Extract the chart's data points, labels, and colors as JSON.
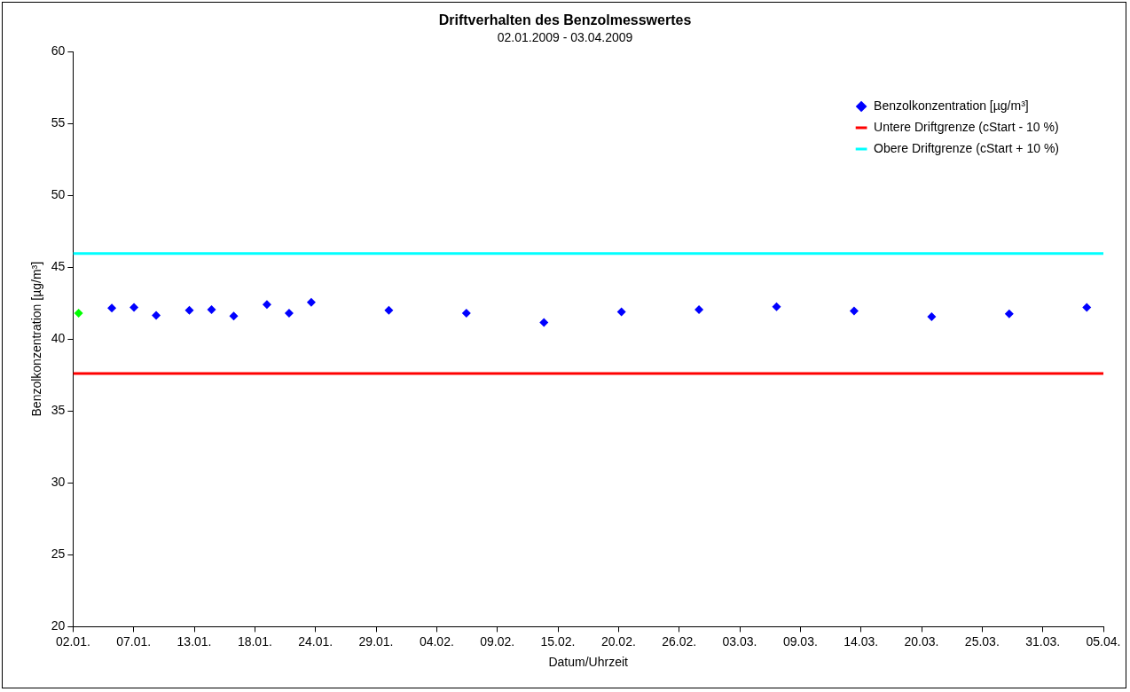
{
  "chart_data": {
    "type": "scatter",
    "title": "Driftverhalten des Benzolmesswertes",
    "subtitle": "02.01.2009 - 03.04.2009",
    "xlabel": "Datum/Uhrzeit",
    "ylabel": "Benzolkonzentration [µg/m³]",
    "xlim": [
      "2009-01-02T12:00",
      "2009-04-05T12:00"
    ],
    "xticks": [
      {
        "value": "2009-01-02T12:00",
        "label": "02.01."
      },
      {
        "value": "2009-01-07T23:17",
        "label": "07.01."
      },
      {
        "value": "2009-01-13T10:35",
        "label": "13.01."
      },
      {
        "value": "2009-01-18T21:53",
        "label": "18.01."
      },
      {
        "value": "2009-01-24T09:11",
        "label": "24.01."
      },
      {
        "value": "2009-01-29T20:28",
        "label": "29.01."
      },
      {
        "value": "2009-02-04T07:46",
        "label": "04.02."
      },
      {
        "value": "2009-02-09T19:04",
        "label": "09.02."
      },
      {
        "value": "2009-02-15T06:21",
        "label": "15.02."
      },
      {
        "value": "2009-02-20T17:39",
        "label": "20.02."
      },
      {
        "value": "2009-02-26T04:57",
        "label": "26.02."
      },
      {
        "value": "2009-03-03T16:14",
        "label": "03.03."
      },
      {
        "value": "2009-03-09T03:32",
        "label": "09.03."
      },
      {
        "value": "2009-03-14T14:50",
        "label": "14.03."
      },
      {
        "value": "2009-03-20T02:07",
        "label": "20.03."
      },
      {
        "value": "2009-03-25T13:25",
        "label": "25.03."
      },
      {
        "value": "2009-03-31T00:43",
        "label": "31.03."
      },
      {
        "value": "2009-04-05T12:00",
        "label": "05.04."
      }
    ],
    "ylim": [
      20,
      60
    ],
    "yticks": [
      20,
      25,
      30,
      35,
      40,
      45,
      50,
      55,
      60
    ],
    "grid": false,
    "legend": "top right",
    "marker": "diamond",
    "series": [
      {
        "name": "Benzolkonzentration [µg/m³]",
        "color": "#0000ff",
        "colors": [
          "#00ff00",
          "#0000ff",
          "#0000ff",
          "#0000ff",
          "#0000ff",
          "#0000ff",
          "#0000ff",
          "#0000ff",
          "#0000ff",
          "#0000ff",
          "#0000ff",
          "#0000ff",
          "#0000ff",
          "#0000ff",
          "#0000ff",
          "#0000ff",
          "#0000ff",
          "#0000ff",
          "#0000ff",
          "#0000ff"
        ],
        "x": [
          "2009-01-03",
          "2009-01-06",
          "2009-01-08",
          "2009-01-10",
          "2009-01-13",
          "2009-01-15",
          "2009-01-17",
          "2009-01-20",
          "2009-01-22",
          "2009-01-24",
          "2009-01-31",
          "2009-02-07",
          "2009-02-14",
          "2009-02-21",
          "2009-02-28",
          "2009-03-07",
          "2009-03-14",
          "2009-03-21",
          "2009-03-28",
          "2009-04-04"
        ],
        "values": [
          41.8,
          42.15,
          42.2,
          41.65,
          42.0,
          42.05,
          41.6,
          42.4,
          41.8,
          42.55,
          42.0,
          41.8,
          41.15,
          41.9,
          42.05,
          42.25,
          41.95,
          41.55,
          41.75,
          42.2
        ]
      },
      {
        "name": "Untere Driftgrenze (cStart - 10 %)",
        "type": "line",
        "marker": "none",
        "color": "#ff0000",
        "x": [
          "2009-01-02T12:00",
          "2009-04-05T12:00"
        ],
        "values": [
          37.6,
          37.6
        ]
      },
      {
        "name": "Obere Driftgrenze (cStart + 10 %)",
        "type": "line",
        "marker": "none",
        "color": "#00ffff",
        "x": [
          "2009-01-02T12:00",
          "2009-04-05T12:00"
        ],
        "values": [
          45.95,
          45.95
        ]
      }
    ]
  }
}
